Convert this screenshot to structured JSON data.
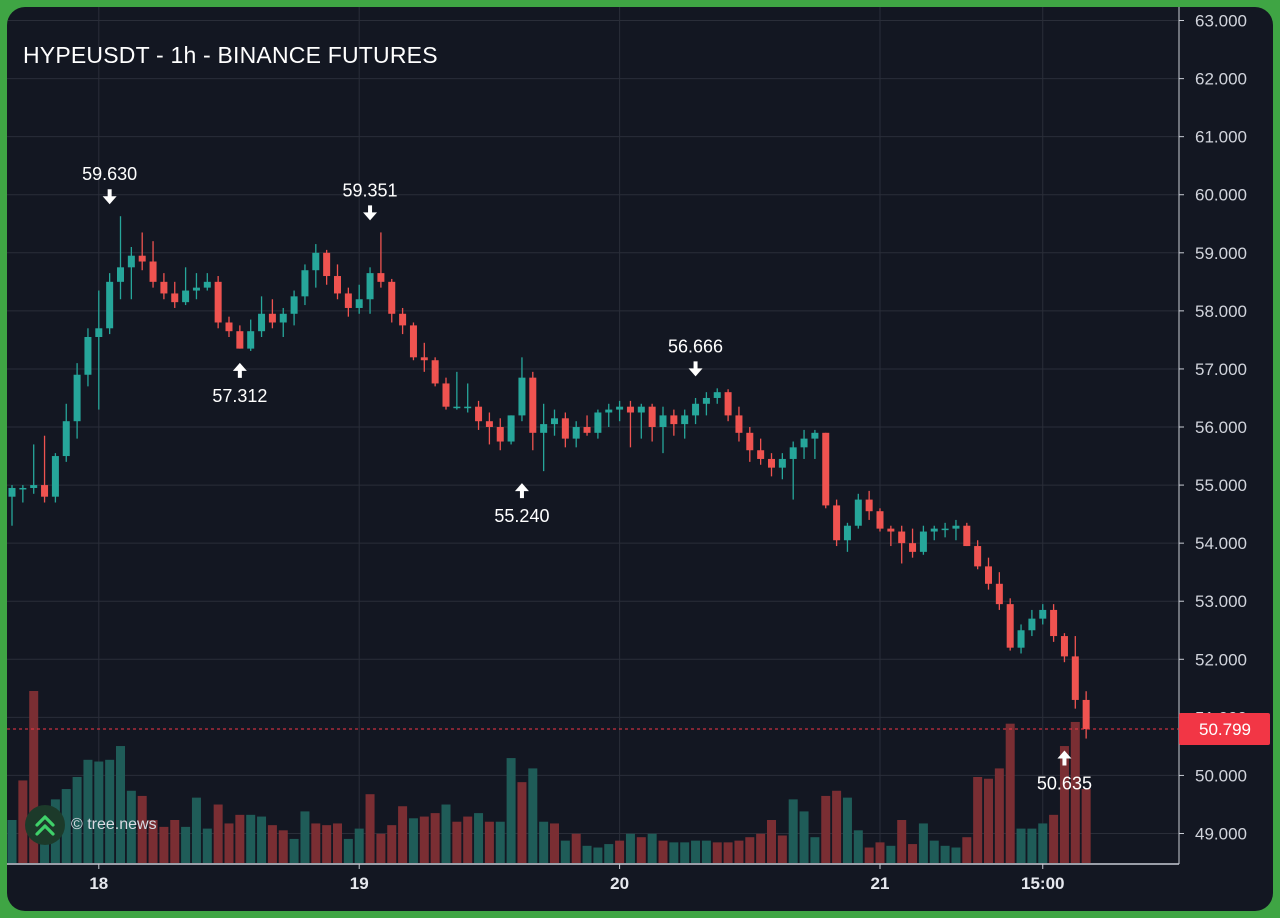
{
  "chart_data": {
    "type": "candlestick",
    "title": "HYPEUSDT - 1h - BINANCE FUTURES",
    "symbol": "HYPEUSDT",
    "interval": "1h",
    "exchange": "BINANCE FUTURES",
    "ylim": [
      48.5,
      63.2
    ],
    "y_ticks": [
      "49.000",
      "50.000",
      "51.000",
      "52.000",
      "53.000",
      "54.000",
      "55.000",
      "56.000",
      "57.000",
      "58.000",
      "59.000",
      "60.000",
      "61.000",
      "62.000",
      "63.000"
    ],
    "x_ticks": [
      {
        "label": "18",
        "bar_index": 8
      },
      {
        "label": "19",
        "bar_index": 32
      },
      {
        "label": "20",
        "bar_index": 56
      },
      {
        "label": "21",
        "bar_index": 80
      },
      {
        "label": "15:00",
        "bar_index": 95
      }
    ],
    "grid": true,
    "last_price": {
      "value": 50.799,
      "label": "50.799",
      "color": "#f23645"
    },
    "annotations": [
      {
        "label": "59.630",
        "bar_index": 9,
        "value": 59.63,
        "kind": "high"
      },
      {
        "label": "57.312",
        "bar_index": 21,
        "value": 57.312,
        "kind": "low"
      },
      {
        "label": "59.351",
        "bar_index": 33,
        "value": 59.351,
        "kind": "high"
      },
      {
        "label": "55.240",
        "bar_index": 47,
        "value": 55.24,
        "kind": "low"
      },
      {
        "label": "56.666",
        "bar_index": 63,
        "value": 56.666,
        "kind": "high"
      },
      {
        "label": "50.635",
        "bar_index": 97,
        "value": 50.635,
        "kind": "low"
      }
    ],
    "colors": {
      "up": "#26a69a",
      "down": "#ef5350",
      "vol_up": "#1f5c58",
      "vol_down": "#7a2e33",
      "grid": "#2a2e39",
      "axis_text": "#d1d4dc",
      "background": "#131722"
    },
    "candles": [
      [
        54.8,
        55.0,
        54.3,
        54.95
      ],
      [
        54.95,
        55.0,
        54.7,
        54.95
      ],
      [
        54.95,
        55.7,
        54.85,
        55.0
      ],
      [
        55.0,
        55.85,
        54.7,
        54.8
      ],
      [
        54.8,
        55.55,
        54.7,
        55.5
      ],
      [
        55.5,
        56.4,
        55.4,
        56.1
      ],
      [
        56.1,
        57.1,
        55.8,
        56.9
      ],
      [
        56.9,
        57.7,
        56.7,
        57.55
      ],
      [
        57.55,
        58.35,
        56.3,
        57.7
      ],
      [
        57.7,
        58.65,
        57.6,
        58.5
      ],
      [
        58.5,
        59.63,
        58.2,
        58.75
      ],
      [
        58.75,
        59.1,
        58.2,
        58.95
      ],
      [
        58.95,
        59.35,
        58.7,
        58.85
      ],
      [
        58.85,
        59.2,
        58.4,
        58.5
      ],
      [
        58.5,
        58.65,
        58.2,
        58.3
      ],
      [
        58.3,
        58.5,
        58.05,
        58.15
      ],
      [
        58.15,
        58.75,
        58.1,
        58.35
      ],
      [
        58.35,
        58.65,
        58.2,
        58.4
      ],
      [
        58.4,
        58.65,
        58.35,
        58.5
      ],
      [
        58.5,
        58.6,
        57.7,
        57.8
      ],
      [
        57.8,
        57.9,
        57.55,
        57.65
      ],
      [
        57.65,
        57.75,
        57.35,
        57.35
      ],
      [
        57.35,
        57.85,
        57.31,
        57.65
      ],
      [
        57.65,
        58.25,
        57.55,
        57.95
      ],
      [
        57.95,
        58.2,
        57.7,
        57.8
      ],
      [
        57.8,
        58.05,
        57.55,
        57.95
      ],
      [
        57.95,
        58.35,
        57.75,
        58.25
      ],
      [
        58.25,
        58.8,
        58.1,
        58.7
      ],
      [
        58.7,
        59.15,
        58.4,
        59.0
      ],
      [
        59.0,
        59.05,
        58.45,
        58.6
      ],
      [
        58.6,
        58.8,
        58.2,
        58.3
      ],
      [
        58.3,
        58.4,
        57.9,
        58.05
      ],
      [
        58.05,
        58.45,
        57.95,
        58.2
      ],
      [
        58.2,
        58.75,
        57.95,
        58.65
      ],
      [
        58.65,
        59.351,
        58.4,
        58.5
      ],
      [
        58.5,
        58.55,
        57.8,
        57.95
      ],
      [
        57.95,
        58.05,
        57.6,
        57.75
      ],
      [
        57.75,
        57.8,
        57.15,
        57.2
      ],
      [
        57.2,
        57.45,
        56.95,
        57.15
      ],
      [
        57.15,
        57.2,
        56.7,
        56.75
      ],
      [
        56.75,
        56.85,
        56.3,
        56.35
      ],
      [
        56.35,
        56.95,
        56.3,
        56.35
      ],
      [
        56.35,
        56.75,
        56.25,
        56.35
      ],
      [
        56.35,
        56.45,
        55.95,
        56.1
      ],
      [
        56.1,
        56.25,
        55.7,
        56.0
      ],
      [
        56.0,
        56.15,
        55.6,
        55.75
      ],
      [
        55.75,
        56.2,
        55.7,
        56.2
      ],
      [
        56.2,
        57.2,
        56.1,
        56.85
      ],
      [
        56.85,
        56.95,
        55.6,
        55.9
      ],
      [
        55.9,
        56.4,
        55.24,
        56.05
      ],
      [
        56.05,
        56.3,
        55.85,
        56.15
      ],
      [
        56.15,
        56.25,
        55.65,
        55.8
      ],
      [
        55.8,
        56.1,
        55.65,
        56.0
      ],
      [
        56.0,
        56.2,
        55.85,
        55.9
      ],
      [
        55.9,
        56.3,
        55.8,
        56.25
      ],
      [
        56.25,
        56.4,
        56.0,
        56.3
      ],
      [
        56.3,
        56.45,
        56.1,
        56.35
      ],
      [
        56.35,
        56.45,
        55.65,
        56.25
      ],
      [
        56.25,
        56.4,
        55.8,
        56.35
      ],
      [
        56.35,
        56.4,
        55.75,
        56.0
      ],
      [
        56.0,
        56.35,
        55.55,
        56.2
      ],
      [
        56.2,
        56.3,
        55.85,
        56.05
      ],
      [
        56.05,
        56.3,
        55.8,
        56.2
      ],
      [
        56.2,
        56.5,
        56.05,
        56.4
      ],
      [
        56.4,
        56.6,
        56.2,
        56.5
      ],
      [
        56.5,
        56.666,
        56.4,
        56.6
      ],
      [
        56.6,
        56.65,
        56.1,
        56.2
      ],
      [
        56.2,
        56.35,
        55.75,
        55.9
      ],
      [
        55.9,
        56.0,
        55.4,
        55.6
      ],
      [
        55.6,
        55.8,
        55.35,
        55.45
      ],
      [
        55.45,
        55.55,
        55.15,
        55.3
      ],
      [
        55.3,
        55.55,
        55.1,
        55.45
      ],
      [
        55.45,
        55.75,
        54.75,
        55.65
      ],
      [
        55.65,
        55.95,
        55.45,
        55.8
      ],
      [
        55.8,
        55.95,
        55.45,
        55.9
      ],
      [
        55.9,
        55.9,
        54.6,
        54.65
      ],
      [
        54.65,
        54.75,
        53.95,
        54.05
      ],
      [
        54.05,
        54.35,
        53.85,
        54.3
      ],
      [
        54.3,
        54.85,
        54.25,
        54.75
      ],
      [
        54.75,
        54.9,
        54.4,
        54.55
      ],
      [
        54.55,
        54.6,
        54.2,
        54.25
      ],
      [
        54.25,
        54.3,
        53.95,
        54.2
      ],
      [
        54.2,
        54.3,
        53.65,
        54.0
      ],
      [
        54.0,
        54.25,
        53.75,
        53.85
      ],
      [
        53.85,
        54.3,
        53.8,
        54.2
      ],
      [
        54.2,
        54.3,
        54.05,
        54.25
      ],
      [
        54.25,
        54.35,
        54.1,
        54.25
      ],
      [
        54.25,
        54.4,
        54.05,
        54.3
      ],
      [
        54.3,
        54.35,
        53.95,
        53.95
      ],
      [
        53.95,
        54.05,
        53.55,
        53.6
      ],
      [
        53.6,
        53.75,
        53.2,
        53.3
      ],
      [
        53.3,
        53.5,
        52.85,
        52.95
      ],
      [
        52.95,
        53.05,
        52.15,
        52.2
      ],
      [
        52.2,
        52.6,
        52.1,
        52.5
      ],
      [
        52.5,
        52.85,
        52.4,
        52.7
      ],
      [
        52.7,
        52.95,
        52.6,
        52.85
      ],
      [
        52.85,
        52.95,
        52.3,
        52.4
      ],
      [
        52.4,
        52.45,
        51.95,
        52.05
      ],
      [
        52.05,
        52.4,
        51.15,
        51.3
      ],
      [
        51.3,
        51.45,
        50.635,
        50.799
      ]
    ],
    "volume": [
      {
        "v": 0.25,
        "up": true
      },
      {
        "v": 0.48,
        "up": false
      },
      {
        "v": 1.0,
        "up": false
      },
      {
        "v": 0.3,
        "up": true
      },
      {
        "v": 0.37,
        "up": true
      },
      {
        "v": 0.43,
        "up": true
      },
      {
        "v": 0.5,
        "up": true
      },
      {
        "v": 0.6,
        "up": true
      },
      {
        "v": 0.59,
        "up": true
      },
      {
        "v": 0.6,
        "up": true
      },
      {
        "v": 0.68,
        "up": true
      },
      {
        "v": 0.42,
        "up": true
      },
      {
        "v": 0.39,
        "up": false
      },
      {
        "v": 0.25,
        "up": false
      },
      {
        "v": 0.21,
        "up": false
      },
      {
        "v": 0.25,
        "up": false
      },
      {
        "v": 0.21,
        "up": true
      },
      {
        "v": 0.38,
        "up": true
      },
      {
        "v": 0.2,
        "up": true
      },
      {
        "v": 0.34,
        "up": false
      },
      {
        "v": 0.23,
        "up": false
      },
      {
        "v": 0.28,
        "up": false
      },
      {
        "v": 0.28,
        "up": true
      },
      {
        "v": 0.27,
        "up": true
      },
      {
        "v": 0.22,
        "up": false
      },
      {
        "v": 0.19,
        "up": false
      },
      {
        "v": 0.14,
        "up": true
      },
      {
        "v": 0.3,
        "up": true
      },
      {
        "v": 0.23,
        "up": false
      },
      {
        "v": 0.22,
        "up": false
      },
      {
        "v": 0.23,
        "up": false
      },
      {
        "v": 0.14,
        "up": true
      },
      {
        "v": 0.2,
        "up": true
      },
      {
        "v": 0.4,
        "up": false
      },
      {
        "v": 0.17,
        "up": false
      },
      {
        "v": 0.22,
        "up": false
      },
      {
        "v": 0.33,
        "up": false
      },
      {
        "v": 0.26,
        "up": true
      },
      {
        "v": 0.27,
        "up": false
      },
      {
        "v": 0.29,
        "up": false
      },
      {
        "v": 0.34,
        "up": true
      },
      {
        "v": 0.24,
        "up": false
      },
      {
        "v": 0.27,
        "up": false
      },
      {
        "v": 0.29,
        "up": true
      },
      {
        "v": 0.24,
        "up": false
      },
      {
        "v": 0.24,
        "up": true
      },
      {
        "v": 0.61,
        "up": true
      },
      {
        "v": 0.47,
        "up": false
      },
      {
        "v": 0.55,
        "up": true
      },
      {
        "v": 0.24,
        "up": true
      },
      {
        "v": 0.23,
        "up": false
      },
      {
        "v": 0.13,
        "up": true
      },
      {
        "v": 0.17,
        "up": false
      },
      {
        "v": 0.1,
        "up": true
      },
      {
        "v": 0.09,
        "up": true
      },
      {
        "v": 0.11,
        "up": true
      },
      {
        "v": 0.13,
        "up": false
      },
      {
        "v": 0.17,
        "up": true
      },
      {
        "v": 0.15,
        "up": false
      },
      {
        "v": 0.17,
        "up": true
      },
      {
        "v": 0.13,
        "up": false
      },
      {
        "v": 0.12,
        "up": true
      },
      {
        "v": 0.12,
        "up": true
      },
      {
        "v": 0.13,
        "up": true
      },
      {
        "v": 0.13,
        "up": true
      },
      {
        "v": 0.12,
        "up": false
      },
      {
        "v": 0.12,
        "up": false
      },
      {
        "v": 0.13,
        "up": false
      },
      {
        "v": 0.15,
        "up": false
      },
      {
        "v": 0.17,
        "up": false
      },
      {
        "v": 0.25,
        "up": false
      },
      {
        "v": 0.16,
        "up": false
      },
      {
        "v": 0.37,
        "up": true
      },
      {
        "v": 0.3,
        "up": true
      },
      {
        "v": 0.15,
        "up": true
      },
      {
        "v": 0.39,
        "up": false
      },
      {
        "v": 0.42,
        "up": false
      },
      {
        "v": 0.38,
        "up": true
      },
      {
        "v": 0.19,
        "up": true
      },
      {
        "v": 0.09,
        "up": false
      },
      {
        "v": 0.12,
        "up": false
      },
      {
        "v": 0.1,
        "up": true
      },
      {
        "v": 0.25,
        "up": false
      },
      {
        "v": 0.11,
        "up": false
      },
      {
        "v": 0.23,
        "up": true
      },
      {
        "v": 0.13,
        "up": true
      },
      {
        "v": 0.1,
        "up": true
      },
      {
        "v": 0.09,
        "up": true
      },
      {
        "v": 0.15,
        "up": false
      },
      {
        "v": 0.5,
        "up": false
      },
      {
        "v": 0.49,
        "up": false
      },
      {
        "v": 0.55,
        "up": false
      },
      {
        "v": 0.81,
        "up": false
      },
      {
        "v": 0.2,
        "up": true
      },
      {
        "v": 0.2,
        "up": true
      },
      {
        "v": 0.23,
        "up": true
      },
      {
        "v": 0.28,
        "up": false
      },
      {
        "v": 0.68,
        "up": false
      },
      {
        "v": 0.82,
        "up": false
      },
      {
        "v": 0.43,
        "up": false
      }
    ]
  },
  "branding": {
    "watermark": "© tree.news"
  }
}
